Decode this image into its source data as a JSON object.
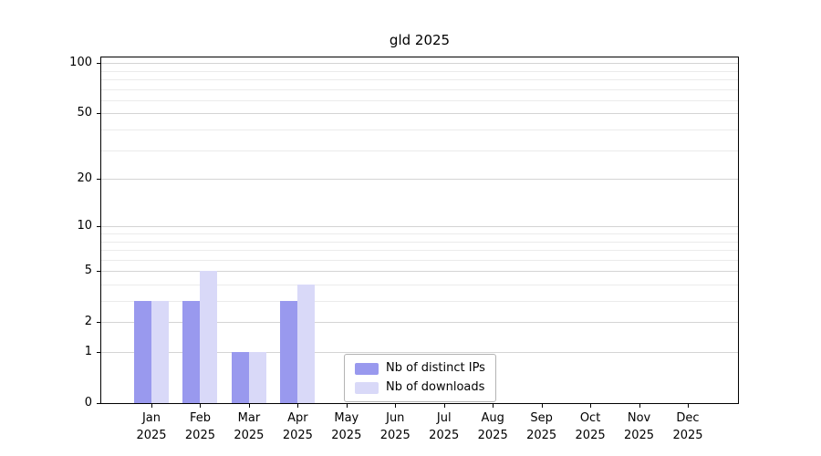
{
  "chart_data": {
    "type": "bar",
    "title": "gld 2025",
    "x_months": [
      "Jan",
      "Feb",
      "Mar",
      "Apr",
      "May",
      "Jun",
      "Jul",
      "Aug",
      "Sep",
      "Oct",
      "Nov",
      "Dec"
    ],
    "x_year": "2025",
    "series": [
      {
        "name": "Nb of distinct IPs",
        "color": "#9999ee",
        "values": [
          3,
          3,
          1,
          3,
          0,
          0,
          0,
          0,
          0,
          0,
          0,
          0
        ]
      },
      {
        "name": "Nb of downloads",
        "color": "#d9d9f8",
        "values": [
          3,
          5,
          1,
          4,
          0,
          0,
          0,
          0,
          0,
          0,
          0,
          0
        ]
      }
    ],
    "y_ticks": [
      0,
      1,
      2,
      5,
      10,
      20,
      50,
      100
    ],
    "y_minor_gridlines": [
      3,
      4,
      6,
      7,
      8,
      9,
      30,
      40,
      60,
      70,
      80,
      90
    ],
    "scale": "log1p",
    "ylim": [
      0,
      112
    ],
    "grid": true,
    "legend_position": "lower-center"
  }
}
